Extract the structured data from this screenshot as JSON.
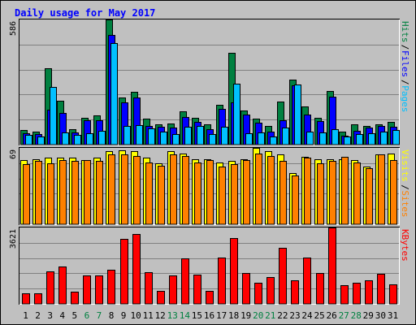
{
  "title": "Daily usage for May 2017",
  "colors": {
    "background": "#c0c0c0",
    "title": "#0000ff",
    "hits": "#008040",
    "files": "#0000ff",
    "pages": "#00c0ff",
    "visits": "#ffff00",
    "sites": "#ff8000",
    "kbytes": "#ff0000",
    "weekend_day": "#008040",
    "weekday": "#000000"
  },
  "chart_data": {
    "type": "bar",
    "categories": [
      "1",
      "2",
      "3",
      "4",
      "5",
      "6",
      "7",
      "8",
      "9",
      "10",
      "11",
      "12",
      "13",
      "14",
      "15",
      "16",
      "17",
      "18",
      "19",
      "20",
      "21",
      "22",
      "23",
      "24",
      "25",
      "26",
      "27",
      "28",
      "29",
      "30",
      "31"
    ],
    "weekend_days": [
      "6",
      "7",
      "13",
      "14",
      "20",
      "21",
      "27",
      "28"
    ],
    "panels": [
      {
        "id": "hits_files_pages",
        "max_label": "586",
        "ylim": [
          0,
          586
        ],
        "legend": [
          "Pages",
          "Files",
          "Hits"
        ],
        "series": [
          {
            "name": "Hits",
            "values": [
              68,
              60,
              359,
              204,
              72,
              127,
              137,
              586,
              222,
              246,
              123,
              95,
              100,
              156,
              126,
              96,
              185,
              429,
              161,
              121,
              86,
              201,
              306,
              178,
              127,
              250,
              59,
              94,
              86,
              94,
              106
            ]
          },
          {
            "name": "Files",
            "values": [
              52,
              48,
              162,
              147,
              56,
              115,
              114,
              512,
              197,
              222,
              88,
              84,
              80,
              128,
              106,
              74,
              169,
              198,
              140,
              104,
              59,
              113,
              277,
              139,
              111,
              223,
              43,
              66,
              81,
              86,
              83
            ]
          },
          {
            "name": "Pages",
            "values": [
              44,
              39,
              269,
              57,
              47,
              54,
              64,
              475,
              88,
              91,
              78,
              62,
              49,
              84,
              89,
              49,
              85,
              286,
              55,
              57,
              37,
              79,
              281,
              62,
              56,
              72,
              39,
              48,
              52,
              61,
              70
            ]
          }
        ]
      },
      {
        "id": "visits_sites",
        "max_label": "69",
        "ylim": [
          0,
          69
        ],
        "legend": [
          "Sites",
          "Visits"
        ],
        "series": [
          {
            "name": "Visits",
            "values": [
              58,
              59,
              60,
              60,
              60,
              58,
              60,
              66,
              67,
              66,
              60,
              55,
              66,
              64,
              59,
              59,
              56,
              57,
              59,
              69,
              66,
              63,
              46,
              61,
              59,
              59,
              59,
              58,
              52,
              63,
              64
            ]
          },
          {
            "name": "Sites",
            "values": [
              54,
              57,
              55,
              58,
              57,
              58,
              57,
              63,
              63,
              62,
              56,
              53,
              63,
              62,
              56,
              58,
              52,
              54,
              58,
              64,
              62,
              57,
              44,
              60,
              55,
              57,
              61,
              56,
              51,
              63,
              58
            ]
          }
        ]
      },
      {
        "id": "kbytes",
        "max_label": "3621",
        "ylim": [
          0,
          3621
        ],
        "legend": [
          "KBytes"
        ],
        "series": [
          {
            "name": "KBytes",
            "values": [
              500,
              500,
              1550,
              1780,
              560,
              1360,
              1350,
              1620,
              3090,
              3330,
              1510,
              630,
              1360,
              2170,
              1380,
              620,
              2190,
              3130,
              1460,
              1000,
              1260,
              2650,
              1120,
              2180,
              1470,
              3621,
              890,
              1010,
              1100,
              1420,
              940
            ]
          }
        ]
      }
    ]
  }
}
